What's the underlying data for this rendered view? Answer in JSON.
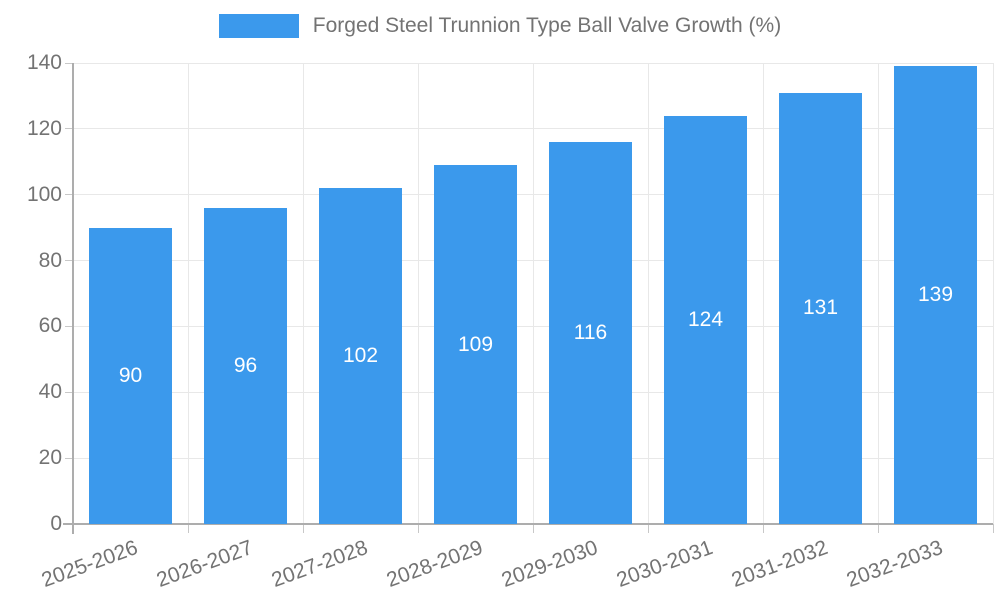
{
  "chart_data": {
    "type": "bar",
    "title": "Forged Steel Trunnion Type Ball Valve Growth (%)",
    "legend": [
      "Forged Steel Trunnion Type Ball Valve Growth (%)"
    ],
    "legend_position": "top",
    "categories": [
      "2025-2026",
      "2026-2027",
      "2027-2028",
      "2028-2029",
      "2029-2030",
      "2030-2031",
      "2031-2032",
      "2032-2033"
    ],
    "values": [
      90,
      96,
      102,
      109,
      116,
      124,
      131,
      139
    ],
    "value_labels": [
      "90",
      "96",
      "102",
      "109",
      "116",
      "124",
      "131",
      "139"
    ],
    "xlabel": "",
    "ylabel": "",
    "ylim": [
      0,
      140
    ],
    "ytick_step": 20,
    "ytick_labels": [
      "0",
      "20",
      "40",
      "60",
      "80",
      "100",
      "120",
      "140"
    ],
    "grid": true,
    "x_label_rotation_deg": -20,
    "colors": {
      "bar": "#3b99ec",
      "value_text": "#ffffff",
      "axis_text": "#737373",
      "legend_text": "#737373",
      "gridline": "#e8e8e8",
      "axis_line": "#adadad",
      "tick_mark": "#c8c8c8",
      "background": "#ffffff"
    }
  }
}
